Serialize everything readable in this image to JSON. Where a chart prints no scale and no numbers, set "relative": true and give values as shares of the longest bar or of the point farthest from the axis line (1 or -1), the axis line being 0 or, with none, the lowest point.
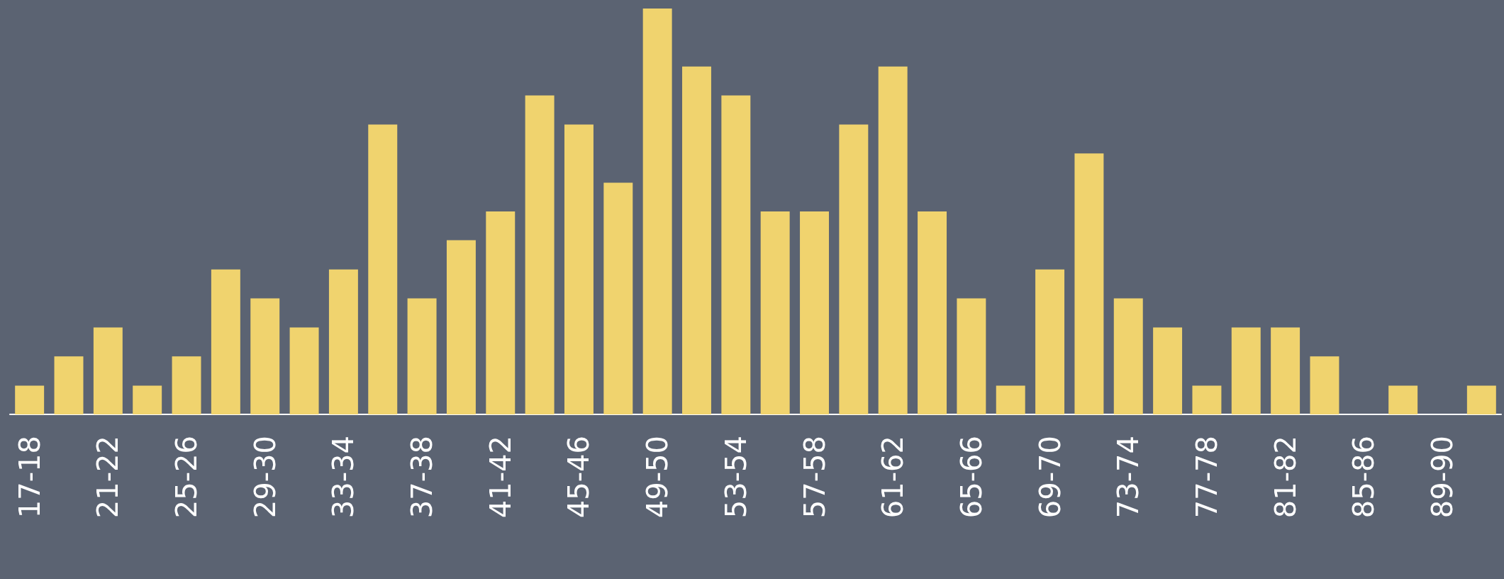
{
  "chart_data": {
    "type": "bar",
    "relative": true,
    "color": "#f0d36e",
    "categories": [
      "17-18",
      null,
      "21-22",
      null,
      "25-26",
      null,
      "29-30",
      null,
      "33-34",
      null,
      "37-38",
      null,
      "41-42",
      null,
      "45-46",
      null,
      "49-50",
      null,
      "53-54",
      null,
      "57-58",
      null,
      "61-62",
      null,
      "65-66",
      null,
      "69-70",
      null,
      "73-74",
      null,
      "77-78",
      null,
      "81-82",
      null,
      "85-86",
      null,
      "89-90",
      null
    ],
    "values": [
      0.071,
      0.143,
      0.214,
      0.071,
      0.143,
      0.357,
      0.286,
      0.214,
      0.357,
      0.714,
      0.286,
      0.429,
      0.5,
      0.786,
      0.714,
      0.571,
      1,
      0.857,
      0.786,
      0.5,
      0.5,
      0.714,
      0.857,
      0.5,
      0.286,
      0.071,
      0.357,
      0.643,
      0.286,
      0.214,
      0.071,
      0.214,
      0.214,
      0.143,
      0,
      0.071,
      0,
      0.071
    ],
    "grid": false
  }
}
